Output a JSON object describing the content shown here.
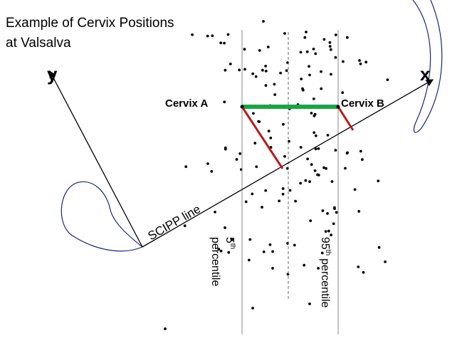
{
  "title_lines": [
    "Example of Cervix Positions",
    "at Valsalva"
  ],
  "axes": {
    "y": "y",
    "x": "x"
  },
  "points": {
    "a": "Cervix A",
    "b": "Cervix B"
  },
  "line_label": "SCIPP line",
  "percentiles": [
    {
      "number": "5",
      "suffix": "th",
      "word": "percentile"
    },
    {
      "number": "95",
      "suffix": "th",
      "word": "percentile"
    }
  ]
}
